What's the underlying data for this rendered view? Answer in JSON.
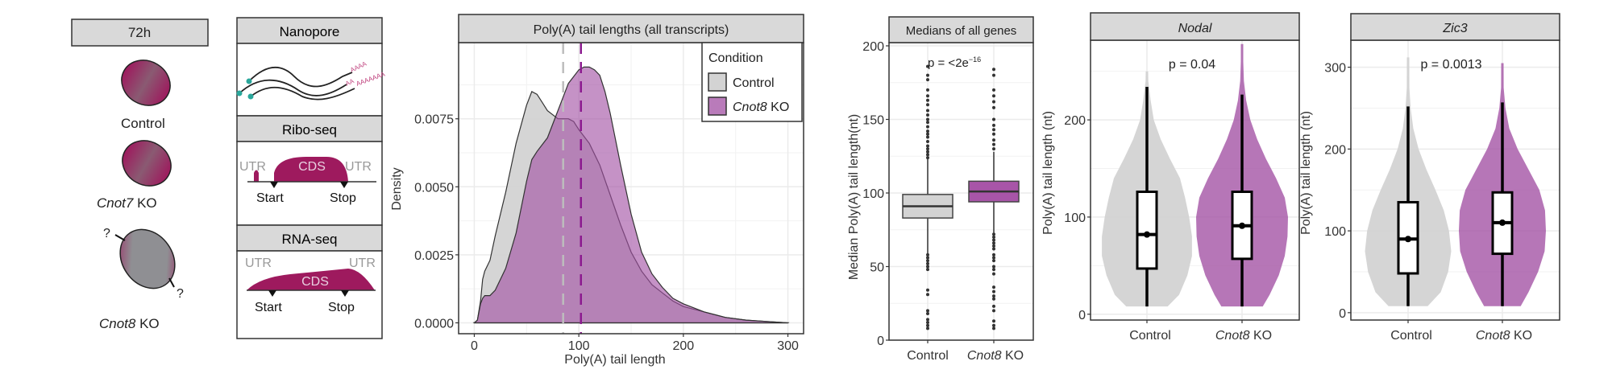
{
  "colors": {
    "control": "#d3d3d3",
    "ko": "#a24fa3",
    "ko_light": "#c98ac9",
    "magenta": "#9e1a5e",
    "teal": "#2aa79b",
    "strip": "#d9d9d9"
  },
  "schematic": {
    "header": "72h",
    "cells": [
      {
        "label_gene": "",
        "label_suffix": "Control"
      },
      {
        "label_gene": "Cnot7",
        "label_suffix": " KO"
      },
      {
        "label_gene": "Cnot8",
        "label_suffix": " KO"
      }
    ],
    "question_mark": "?"
  },
  "methods": {
    "nanopore": {
      "title": "Nanopore",
      "tail_a": "AAAA",
      "tail_b": "AA",
      "tail_c": "AAAAAAA"
    },
    "riboseq": {
      "title": "Ribo-seq",
      "utr_left": "UTR",
      "cds": "CDS",
      "utr_right": "UTR",
      "start": "Start",
      "stop": "Stop"
    },
    "rnaseq": {
      "title": "RNA-seq",
      "utr_left": "UTR",
      "cds": "CDS",
      "utr_right": "UTR",
      "start": "Start",
      "stop": "Stop"
    }
  },
  "chart_data": [
    {
      "type": "area",
      "title": "Poly(A) tail lengths (all transcripts)",
      "xlabel": "Poly(A) tail length",
      "ylabel": "Density",
      "xlim": [
        -15,
        315
      ],
      "ylim": [
        -0.0004,
        0.0103
      ],
      "xticks": [
        "0",
        "100",
        "200",
        "300"
      ],
      "xtick_values": [
        0,
        100,
        200,
        300
      ],
      "yticks": [
        "0.0000",
        "0.0025",
        "0.0050",
        "0.0075"
      ],
      "ytick_values": [
        0,
        0.0025,
        0.005,
        0.0075
      ],
      "grid": true,
      "legend": {
        "title": "Condition",
        "position": "top-right",
        "entries": [
          {
            "gene": "",
            "suffix": "Control"
          },
          {
            "gene": "Cnot8",
            "suffix": " KO"
          }
        ]
      },
      "series": [
        {
          "name": "Control",
          "median": 85,
          "x": [
            0,
            3,
            6,
            8,
            10,
            15,
            20,
            30,
            40,
            50,
            55,
            60,
            65,
            70,
            80,
            90,
            95,
            100,
            110,
            120,
            130,
            140,
            150,
            160,
            170,
            180,
            190,
            200,
            220,
            240,
            260,
            280,
            300
          ],
          "y": [
            0,
            0.0001,
            0.0008,
            0.0016,
            0.0019,
            0.0023,
            0.0032,
            0.0048,
            0.0066,
            0.008,
            0.0085,
            0.0084,
            0.0081,
            0.0078,
            0.0075,
            0.0075,
            0.0074,
            0.0071,
            0.0066,
            0.0058,
            0.0047,
            0.0036,
            0.0026,
            0.0019,
            0.0014,
            0.0011,
            0.0008,
            0.0006,
            0.0004,
            0.0002,
            0.0001,
            5e-05,
            0
          ]
        },
        {
          "name": "Cnot8 KO",
          "median": 102,
          "x": [
            0,
            3,
            6,
            8,
            10,
            15,
            20,
            30,
            40,
            50,
            55,
            60,
            70,
            80,
            90,
            100,
            105,
            110,
            115,
            120,
            125,
            130,
            140,
            150,
            160,
            170,
            180,
            190,
            200,
            220,
            240,
            260,
            280,
            300
          ],
          "y": [
            0,
            0.0001,
            0.0007,
            0.0009,
            0.001,
            0.001,
            0.0012,
            0.002,
            0.0033,
            0.0052,
            0.006,
            0.0063,
            0.0068,
            0.0078,
            0.0088,
            0.0093,
            0.0094,
            0.0094,
            0.0093,
            0.0091,
            0.0085,
            0.0077,
            0.0058,
            0.004,
            0.0026,
            0.0018,
            0.0013,
            0.0009,
            0.0007,
            0.0004,
            0.0002,
            0.0001,
            5e-05,
            0
          ]
        }
      ]
    },
    {
      "type": "box",
      "title": "Medians of all genes",
      "ylabel": "Median Poly(A) tail length(nt)",
      "ylim": [
        0,
        203
      ],
      "yticks": [
        "0",
        "50",
        "100",
        "150",
        "200"
      ],
      "ytick_values": [
        0,
        50,
        100,
        150,
        200
      ],
      "categories": [
        {
          "gene": "",
          "suffix": "Control"
        },
        {
          "gene": "Cnot8",
          "suffix": " KO"
        }
      ],
      "annotation": {
        "text": "p = <2e",
        "superscript": "−16"
      },
      "grid": true,
      "series": [
        {
          "name": "Control",
          "q1": 83,
          "median": 91,
          "q3": 99,
          "whisker_low": 59,
          "whisker_high": 123,
          "outliers": [
            8,
            10,
            12,
            14,
            18,
            20,
            31,
            34,
            48,
            50,
            52,
            54,
            56,
            58,
            124,
            126,
            128,
            130,
            132,
            135,
            138,
            140,
            142,
            145,
            148,
            150,
            153,
            156,
            160,
            163,
            166,
            170,
            177,
            180,
            186
          ]
        },
        {
          "name": "Cnot8 KO",
          "q1": 94,
          "median": 101,
          "q3": 108,
          "whisker_low": 73,
          "whisker_high": 128,
          "outliers": [
            8,
            10,
            13,
            20,
            23,
            28,
            30,
            33,
            36,
            45,
            48,
            50,
            54,
            56,
            58,
            62,
            64,
            66,
            68,
            70,
            72,
            130,
            133,
            136,
            140,
            143,
            146,
            150,
            158,
            162,
            166,
            170,
            180,
            184
          ]
        }
      ]
    },
    {
      "type": "violin",
      "title": "Nodal",
      "ylabel": "Poly(A) tail length (nt)",
      "ylim": [
        -6,
        282
      ],
      "yticks": [
        "0",
        "100",
        "200"
      ],
      "ytick_values": [
        0,
        100,
        200
      ],
      "categories": [
        {
          "gene": "",
          "suffix": "Control"
        },
        {
          "gene": "Cnot8",
          "suffix": " KO"
        }
      ],
      "annotation": {
        "text": "p = 0.04"
      },
      "grid": true,
      "series": [
        {
          "name": "Control",
          "q1": 47,
          "median": 82,
          "q3": 126,
          "whisker_low": 8,
          "whisker_high": 234,
          "max": 250,
          "violin_y": [
            8,
            20,
            40,
            60,
            80,
            100,
            120,
            140,
            160,
            180,
            200,
            220,
            240,
            250
          ],
          "violin_w": [
            0.45,
            0.7,
            0.88,
            0.98,
            0.98,
            0.92,
            0.83,
            0.72,
            0.5,
            0.3,
            0.15,
            0.08,
            0.03,
            0.01
          ]
        },
        {
          "name": "Cnot8 KO",
          "q1": 57,
          "median": 91,
          "q3": 126,
          "whisker_low": 8,
          "whisker_high": 226,
          "max": 278,
          "violin_y": [
            8,
            20,
            40,
            60,
            80,
            100,
            120,
            140,
            160,
            180,
            200,
            220,
            240,
            260,
            278
          ],
          "violin_w": [
            0.45,
            0.6,
            0.8,
            0.93,
            0.99,
            1.0,
            0.93,
            0.74,
            0.52,
            0.33,
            0.18,
            0.09,
            0.04,
            0.02,
            0.01
          ]
        }
      ]
    },
    {
      "type": "violin",
      "title": "Zic3",
      "ylabel": "Poly(A) tail length (nt)",
      "ylim": [
        -9,
        333
      ],
      "yticks": [
        "0",
        "100",
        "200",
        "300"
      ],
      "ytick_values": [
        0,
        100,
        200,
        300
      ],
      "categories": [
        {
          "gene": "",
          "suffix": "Control"
        },
        {
          "gene": "Cnot8",
          "suffix": " KO"
        }
      ],
      "annotation": {
        "text": "p = 0.0013"
      },
      "grid": true,
      "series": [
        {
          "name": "Control",
          "q1": 48,
          "median": 90,
          "q3": 135,
          "whisker_low": 8,
          "whisker_high": 252,
          "max": 312,
          "violin_y": [
            8,
            25,
            50,
            75,
            100,
            125,
            150,
            175,
            200,
            225,
            250,
            275,
            312
          ],
          "violin_w": [
            0.45,
            0.75,
            0.92,
            0.99,
            0.94,
            0.82,
            0.63,
            0.42,
            0.24,
            0.12,
            0.06,
            0.03,
            0.01
          ]
        },
        {
          "name": "Cnot8 KO",
          "q1": 72,
          "median": 110,
          "q3": 147,
          "whisker_low": 8,
          "whisker_high": 257,
          "max": 305,
          "violin_y": [
            8,
            25,
            50,
            75,
            100,
            125,
            150,
            175,
            200,
            225,
            250,
            275,
            305
          ],
          "violin_w": [
            0.42,
            0.6,
            0.82,
            0.97,
            1.0,
            0.98,
            0.85,
            0.6,
            0.35,
            0.16,
            0.07,
            0.03,
            0.01
          ]
        }
      ]
    }
  ]
}
